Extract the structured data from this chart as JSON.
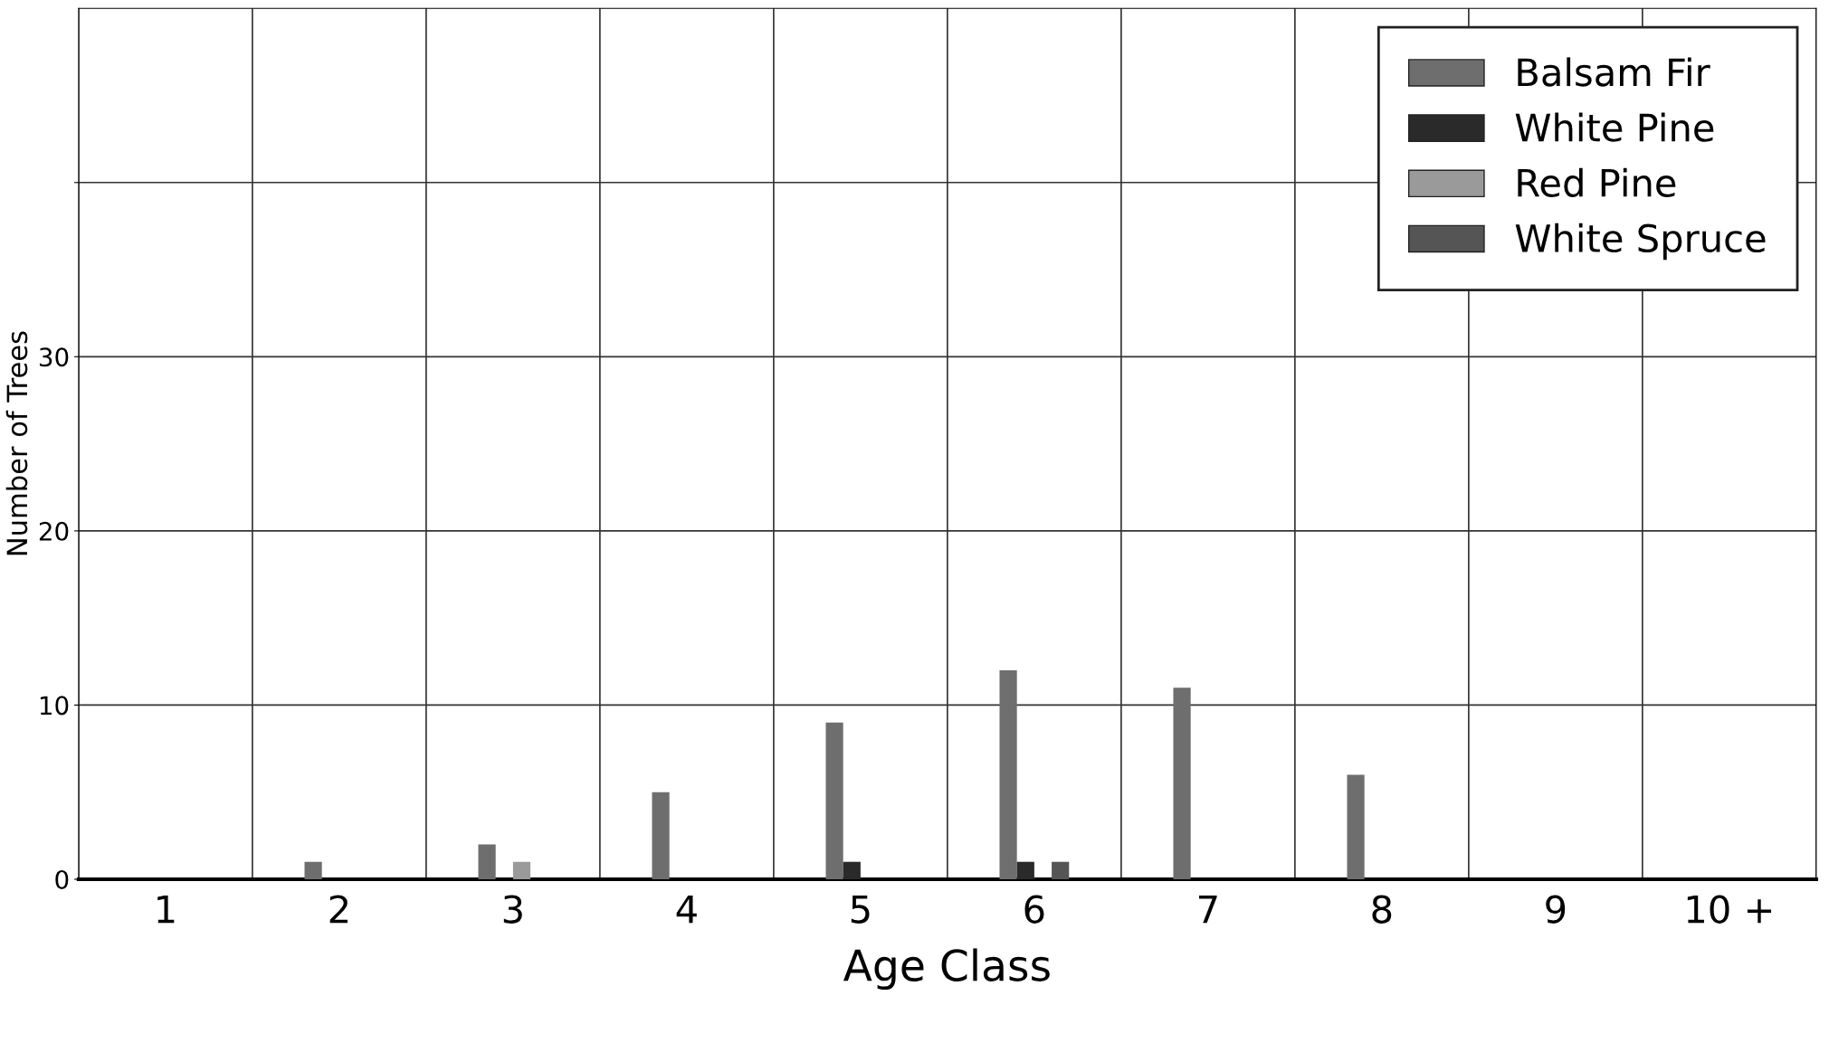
{
  "chart_data": {
    "type": "bar",
    "xlabel": "Age Class",
    "ylabel": "Number of Trees",
    "categories": [
      "1",
      "2",
      "3",
      "4",
      "5",
      "6",
      "7",
      "8",
      "9",
      "10 +"
    ],
    "series": [
      {
        "name": "Balsam Fir",
        "color": "#6e6e6e",
        "values": [
          0,
          1,
          2,
          5,
          9,
          12,
          11,
          6,
          0,
          0
        ]
      },
      {
        "name": "White Pine",
        "color": "#2a2a2a",
        "values": [
          0,
          0,
          0,
          0,
          1,
          1,
          0,
          0,
          0,
          0
        ]
      },
      {
        "name": "Red Pine",
        "color": "#9a9a9a",
        "values": [
          0,
          0,
          1,
          0,
          0,
          0,
          0,
          0,
          0,
          0
        ]
      },
      {
        "name": "White Spruce",
        "color": "#555555",
        "values": [
          0,
          0,
          0,
          0,
          0,
          1,
          0,
          0,
          0,
          0
        ]
      }
    ],
    "ylim": [
      0,
      50
    ],
    "yticks": [
      0,
      10,
      20,
      30,
      {
        "value": 40,
        "label": null
      }
    ],
    "grid": true,
    "legend": "top right"
  }
}
